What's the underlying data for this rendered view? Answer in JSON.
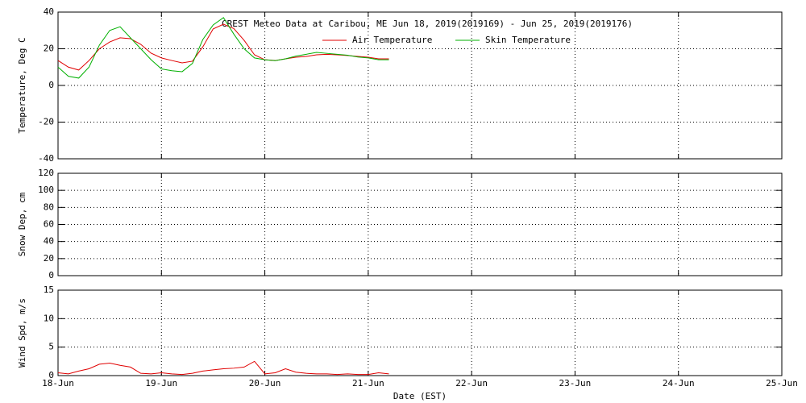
{
  "chart_data": [
    {
      "type": "line",
      "title": "CREST Meteo Data at Caribou, ME   Jun 18, 2019(2019169) - Jun 25, 2019(2019176)",
      "ylabel": "Temperature, Deg C",
      "ylim": [
        -40,
        40
      ],
      "yticks": [
        -40,
        -20,
        0,
        20,
        40
      ],
      "grid": true,
      "legend": "top",
      "x": [
        0,
        0.1,
        0.2,
        0.3,
        0.4,
        0.5,
        0.6,
        0.7,
        0.8,
        0.9,
        1.0,
        1.1,
        1.2,
        1.3,
        1.4,
        1.5,
        1.6,
        1.7,
        1.8,
        1.9,
        2.0,
        2.1,
        2.2,
        2.3,
        2.4,
        2.5,
        2.6,
        2.7,
        2.8,
        2.9,
        3.0,
        3.1,
        3.2
      ],
      "series": [
        {
          "name": "Air Temperature",
          "color": "#e00000",
          "values": [
            13.6,
            10,
            8.4,
            13.6,
            20,
            23.7,
            26,
            25.5,
            22.4,
            17.6,
            15,
            13.6,
            12.3,
            13.2,
            21,
            30.8,
            33.4,
            31,
            24.6,
            16.7,
            14,
            13.6,
            14.5,
            15.4,
            15.8,
            16.7,
            17,
            16.7,
            16.3,
            15.8,
            15.4,
            14.5,
            14.5
          ]
        },
        {
          "name": "Skin Temperature",
          "color": "#00b000",
          "values": [
            10,
            5,
            4,
            10,
            22,
            30,
            32,
            26,
            20,
            14,
            9,
            8,
            7.5,
            12,
            25,
            33,
            37,
            28,
            20,
            15,
            14,
            13.5,
            14.5,
            16,
            17,
            18,
            17.5,
            17,
            16.5,
            15.5,
            15,
            14,
            14
          ]
        }
      ]
    },
    {
      "type": "line",
      "ylabel": "Snow Dep, cm",
      "ylim": [
        0,
        120
      ],
      "yticks": [
        0,
        20,
        40,
        60,
        80,
        100,
        120
      ],
      "grid": true,
      "x": [],
      "series": []
    },
    {
      "type": "line",
      "ylabel": "Wind Spd, m/s",
      "xlabel": "Date (EST)",
      "ylim": [
        0,
        15
      ],
      "yticks": [
        0,
        5,
        10,
        15
      ],
      "grid": true,
      "xlim": [
        0,
        7
      ],
      "xticks": [
        {
          "value": 0,
          "label": "18-Jun"
        },
        {
          "value": 1,
          "label": "19-Jun"
        },
        {
          "value": 2,
          "label": "20-Jun"
        },
        {
          "value": 3,
          "label": "21-Jun"
        },
        {
          "value": 4,
          "label": "22-Jun"
        },
        {
          "value": 5,
          "label": "23-Jun"
        },
        {
          "value": 6,
          "label": "24-Jun"
        },
        {
          "value": 7,
          "label": "25-Jun"
        }
      ],
      "x": [
        0,
        0.1,
        0.2,
        0.3,
        0.4,
        0.5,
        0.6,
        0.7,
        0.8,
        0.9,
        1.0,
        1.1,
        1.2,
        1.3,
        1.4,
        1.5,
        1.6,
        1.7,
        1.8,
        1.9,
        2.0,
        2.1,
        2.2,
        2.3,
        2.4,
        2.5,
        2.6,
        2.7,
        2.8,
        2.9,
        3.0,
        3.1,
        3.2
      ],
      "series": [
        {
          "color": "#e00000",
          "values": [
            0.5,
            0.3,
            0.8,
            1.2,
            2,
            2.2,
            1.8,
            1.5,
            0.4,
            0.3,
            0.5,
            0.3,
            0.2,
            0.4,
            0.8,
            1,
            1.2,
            1.3,
            1.5,
            2.5,
            0.3,
            0.5,
            1.2,
            0.6,
            0.4,
            0.3,
            0.3,
            0.2,
            0.3,
            0.2,
            0.2,
            0.5,
            0.3
          ]
        }
      ]
    }
  ]
}
